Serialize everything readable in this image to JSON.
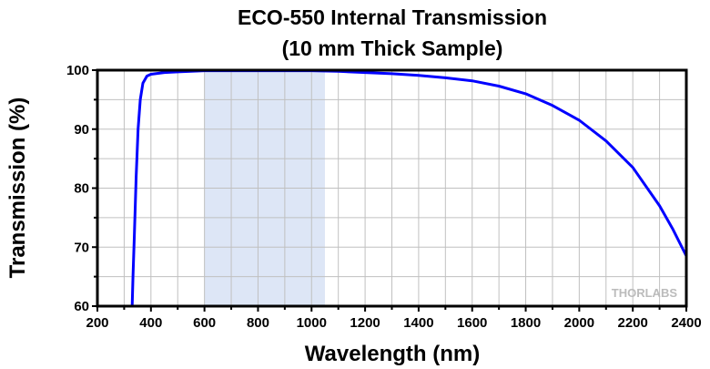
{
  "chart_data": {
    "type": "line",
    "title": "ECO-550 Internal Transmission",
    "subtitle": "(10 mm Thick Sample)",
    "xlabel": "Wavelength (nm)",
    "ylabel": "Transmission (%)",
    "xlim": [
      200,
      2400
    ],
    "ylim": [
      60,
      100
    ],
    "xticks": [
      200,
      400,
      600,
      800,
      1000,
      1200,
      1400,
      1600,
      1800,
      2000,
      2200,
      2400
    ],
    "yticks": [
      60,
      70,
      80,
      90,
      100
    ],
    "grid": true,
    "highlight_band": [
      600,
      1050
    ],
    "watermark": "THORLABS",
    "series": [
      {
        "name": "Internal Transmission",
        "color": "#0000ff",
        "x": [
          330,
          333,
          338,
          345,
          352,
          360,
          370,
          385,
          400,
          450,
          500,
          600,
          800,
          1000,
          1100,
          1200,
          1300,
          1400,
          1500,
          1600,
          1700,
          1800,
          1900,
          2000,
          2100,
          2200,
          2300,
          2350,
          2400
        ],
        "y": [
          60,
          65,
          72,
          82,
          90,
          95,
          97.8,
          99,
          99.3,
          99.6,
          99.7,
          99.9,
          99.9,
          99.9,
          99.8,
          99.6,
          99.4,
          99.1,
          98.7,
          98.2,
          97.3,
          96,
          94,
          91.5,
          88,
          83.5,
          77,
          73,
          68.5
        ]
      }
    ],
    "colors": {
      "band": "#dde6f6",
      "grid": "#c0c0c0",
      "axis": "#000000"
    }
  }
}
